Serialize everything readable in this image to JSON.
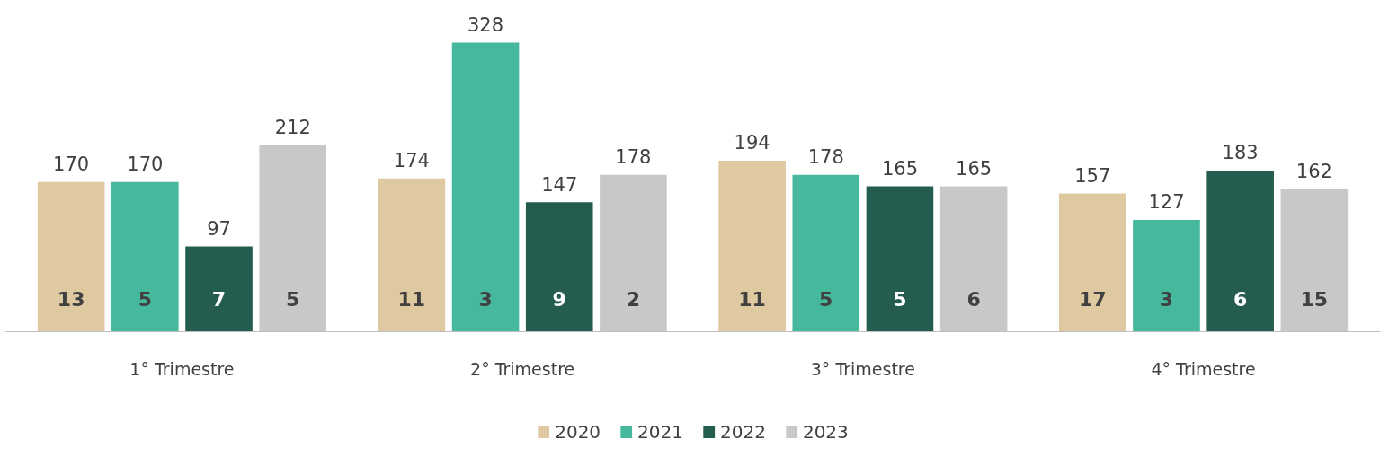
{
  "chart_data": {
    "type": "bar",
    "categories": [
      "1° Trimestre",
      "2° Trimestre",
      "3° Trimestre",
      "4° Trimestre"
    ],
    "series": [
      {
        "name": "2020",
        "color": "#dfc9a0",
        "values": [
          170,
          174,
          194,
          157
        ]
      },
      {
        "name": "2021",
        "color": "#46b89e",
        "values": [
          170,
          328,
          178,
          127
        ]
      },
      {
        "name": "2022",
        "color": "#245c50",
        "values": [
          97,
          147,
          165,
          183
        ]
      },
      {
        "name": "2023",
        "color": "#c8c8ca",
        "values": [
          212,
          178,
          165,
          162
        ]
      }
    ],
    "annotations": [
      "13",
      "5",
      "7",
      "5",
      "11",
      "3",
      "9",
      "2",
      "11",
      "5",
      "5",
      "6",
      "17",
      "3",
      "6",
      "15"
    ],
    "data_labels": true,
    "legend": "bottom",
    "grid": false
  }
}
